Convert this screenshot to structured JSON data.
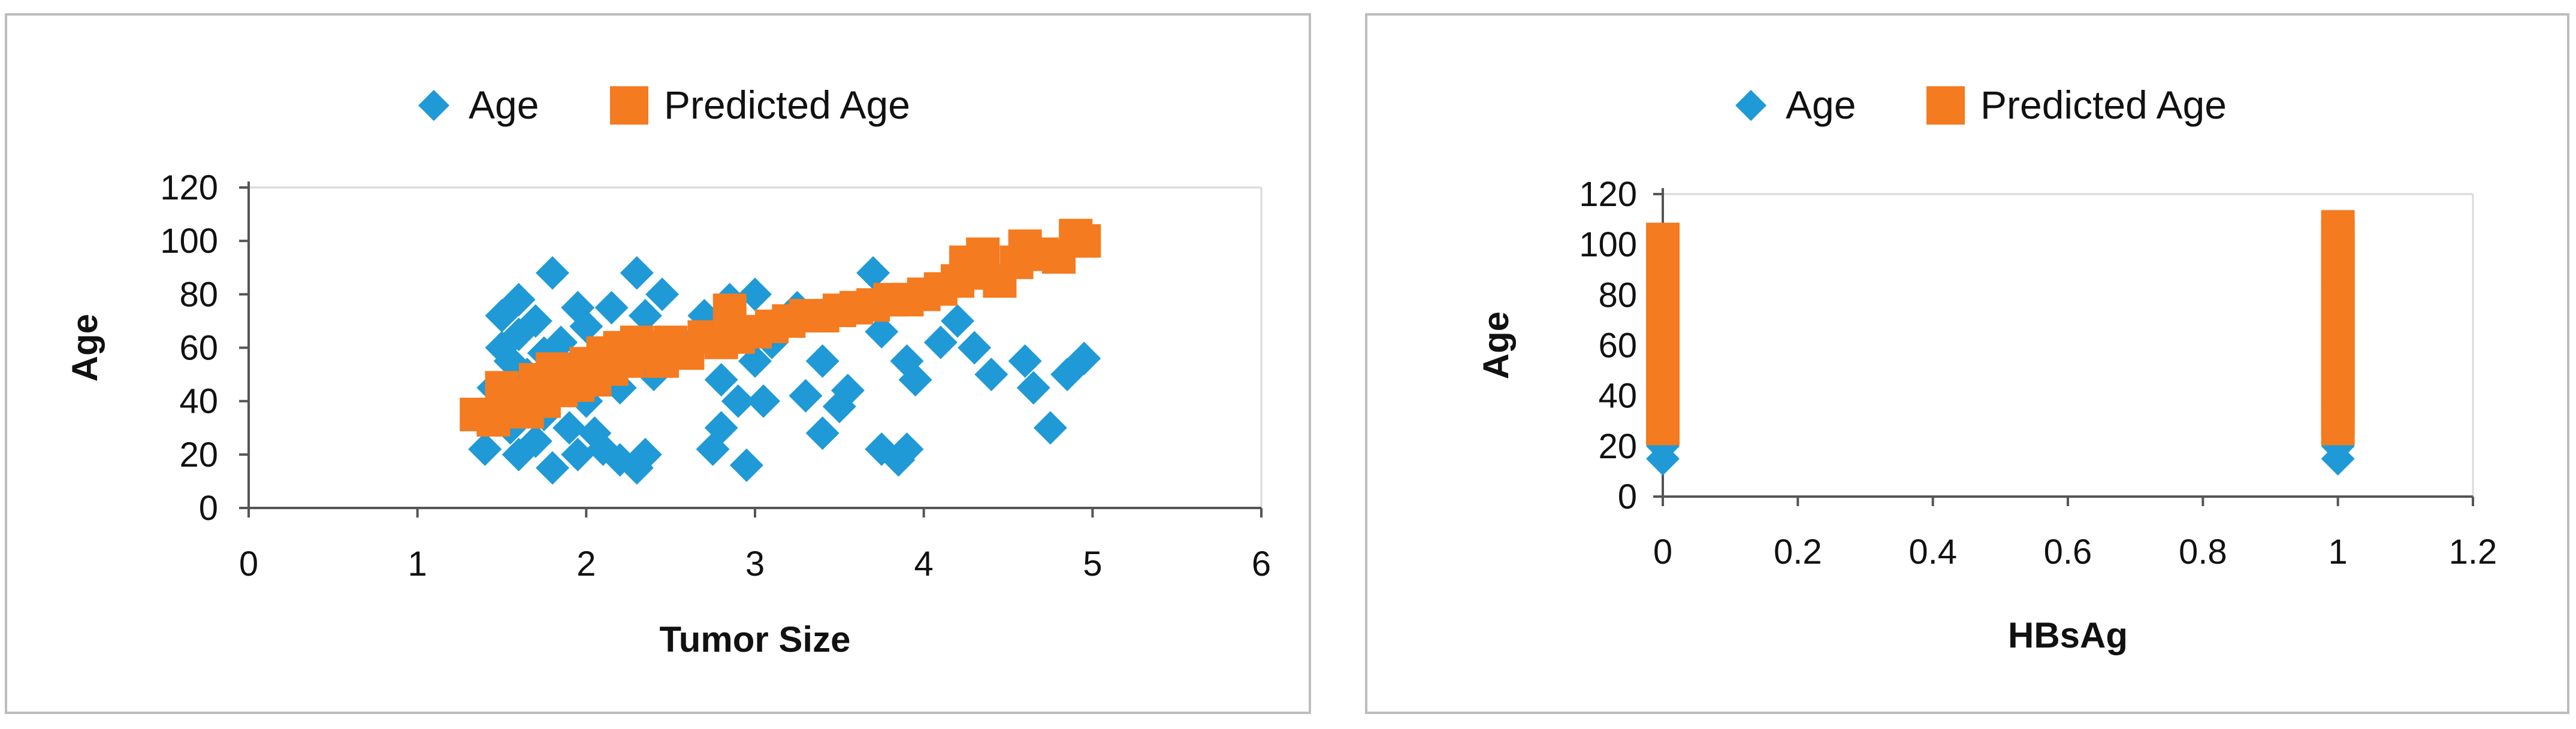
{
  "chart_data": [
    {
      "type": "scatter",
      "title": "",
      "xlabel": "Tumor Size",
      "ylabel": "Age",
      "xlim": [
        0,
        6
      ],
      "ylim": [
        0,
        120
      ],
      "xticks": [
        "0",
        "1",
        "2",
        "3",
        "4",
        "5",
        "6"
      ],
      "yticks": [
        "0",
        "20",
        "40",
        "60",
        "80",
        "100",
        "120"
      ],
      "grid": false,
      "legend_position": "top-center",
      "series": [
        {
          "name": "Age",
          "color": "#1f9ad6",
          "marker": "diamond",
          "points": [
            [
              1.4,
              22
            ],
            [
              1.45,
              45
            ],
            [
              1.5,
              60
            ],
            [
              1.5,
              72
            ],
            [
              1.55,
              30
            ],
            [
              1.55,
              55
            ],
            [
              1.6,
              20
            ],
            [
              1.6,
              40
            ],
            [
              1.6,
              65
            ],
            [
              1.6,
              78
            ],
            [
              1.65,
              50
            ],
            [
              1.7,
              25
            ],
            [
              1.7,
              70
            ],
            [
              1.75,
              35
            ],
            [
              1.75,
              58
            ],
            [
              1.8,
              15
            ],
            [
              1.8,
              45
            ],
            [
              1.8,
              88
            ],
            [
              1.85,
              62
            ],
            [
              1.9,
              30
            ],
            [
              1.9,
              52
            ],
            [
              1.95,
              20
            ],
            [
              1.95,
              75
            ],
            [
              2.0,
              40
            ],
            [
              2.0,
              68
            ],
            [
              2.05,
              28
            ],
            [
              2.1,
              22
            ],
            [
              2.1,
              55
            ],
            [
              2.15,
              75
            ],
            [
              2.2,
              18
            ],
            [
              2.2,
              45
            ],
            [
              2.25,
              60
            ],
            [
              2.3,
              15
            ],
            [
              2.3,
              88
            ],
            [
              2.35,
              20
            ],
            [
              2.35,
              72
            ],
            [
              2.4,
              50
            ],
            [
              2.45,
              80
            ],
            [
              2.6,
              60
            ],
            [
              2.7,
              72
            ],
            [
              2.75,
              22
            ],
            [
              2.8,
              30
            ],
            [
              2.8,
              48
            ],
            [
              2.85,
              78
            ],
            [
              2.9,
              40
            ],
            [
              2.95,
              16
            ],
            [
              3.0,
              55
            ],
            [
              3.0,
              80
            ],
            [
              3.05,
              40
            ],
            [
              3.1,
              62
            ],
            [
              3.25,
              75
            ],
            [
              3.3,
              42
            ],
            [
              3.4,
              28
            ],
            [
              3.4,
              55
            ],
            [
              3.5,
              38
            ],
            [
              3.55,
              44
            ],
            [
              3.6,
              75
            ],
            [
              3.7,
              88
            ],
            [
              3.75,
              22
            ],
            [
              3.75,
              66
            ],
            [
              3.85,
              18
            ],
            [
              3.9,
              22
            ],
            [
              3.9,
              55
            ],
            [
              3.95,
              48
            ],
            [
              4.1,
              62
            ],
            [
              4.2,
              70
            ],
            [
              4.3,
              60
            ],
            [
              4.4,
              50
            ],
            [
              4.6,
              55
            ],
            [
              4.65,
              45
            ],
            [
              4.75,
              30
            ],
            [
              4.85,
              50
            ],
            [
              4.95,
              56
            ]
          ]
        },
        {
          "name": "Predicted Age",
          "color": "#f47b20",
          "marker": "square",
          "points": [
            [
              1.35,
              35
            ],
            [
              1.45,
              33
            ],
            [
              1.5,
              45
            ],
            [
              1.55,
              38
            ],
            [
              1.6,
              42
            ],
            [
              1.65,
              36
            ],
            [
              1.7,
              48
            ],
            [
              1.75,
              40
            ],
            [
              1.8,
              52
            ],
            [
              1.85,
              44
            ],
            [
              1.9,
              50
            ],
            [
              1.95,
              46
            ],
            [
              2.0,
              54
            ],
            [
              2.05,
              48
            ],
            [
              2.1,
              58
            ],
            [
              2.15,
              52
            ],
            [
              2.2,
              60
            ],
            [
              2.25,
              55
            ],
            [
              2.3,
              62
            ],
            [
              2.35,
              58
            ],
            [
              2.4,
              60
            ],
            [
              2.45,
              55
            ],
            [
              2.5,
              62
            ],
            [
              2.6,
              58
            ],
            [
              2.7,
              64
            ],
            [
              2.8,
              62
            ],
            [
              2.85,
              74
            ],
            [
              2.9,
              64
            ],
            [
              3.0,
              66
            ],
            [
              3.1,
              68
            ],
            [
              3.2,
              70
            ],
            [
              3.3,
              72
            ],
            [
              3.4,
              72
            ],
            [
              3.5,
              74
            ],
            [
              3.6,
              75
            ],
            [
              3.7,
              76
            ],
            [
              3.8,
              78
            ],
            [
              3.9,
              78
            ],
            [
              4.0,
              80
            ],
            [
              4.1,
              82
            ],
            [
              4.2,
              85
            ],
            [
              4.25,
              92
            ],
            [
              4.3,
              88
            ],
            [
              4.35,
              95
            ],
            [
              4.45,
              85
            ],
            [
              4.55,
              92
            ],
            [
              4.6,
              98
            ],
            [
              4.7,
              95
            ],
            [
              4.8,
              94
            ],
            [
              4.9,
              102
            ],
            [
              4.95,
              100
            ]
          ]
        }
      ]
    },
    {
      "type": "scatter",
      "title": "",
      "xlabel": "HBsAg",
      "ylabel": "Age",
      "xlim": [
        0,
        1.2
      ],
      "ylim": [
        0,
        120
      ],
      "xticks": [
        "0",
        "0.2",
        "0.4",
        "0.6",
        "0.8",
        "1",
        "1.2"
      ],
      "yticks": [
        "0",
        "20",
        "40",
        "60",
        "80",
        "100",
        "120"
      ],
      "grid": false,
      "legend_position": "top-center",
      "series": [
        {
          "name": "Age",
          "color": "#1f9ad6",
          "marker": "diamond",
          "points": [
            [
              0,
              15
            ],
            [
              0,
              20
            ],
            [
              0,
              25
            ],
            [
              0,
              30
            ],
            [
              0,
              35
            ],
            [
              0,
              40
            ],
            [
              0,
              45
            ],
            [
              0,
              50
            ],
            [
              0,
              55
            ],
            [
              0,
              60
            ],
            [
              0,
              65
            ],
            [
              0,
              70
            ],
            [
              0,
              75
            ],
            [
              0,
              80
            ],
            [
              0,
              85
            ],
            [
              0,
              90
            ],
            [
              1,
              15
            ],
            [
              1,
              20
            ],
            [
              1,
              25
            ],
            [
              1,
              30
            ],
            [
              1,
              35
            ],
            [
              1,
              40
            ],
            [
              1,
              45
            ],
            [
              1,
              50
            ],
            [
              1,
              55
            ],
            [
              1,
              60
            ],
            [
              1,
              65
            ],
            [
              1,
              70
            ],
            [
              1,
              75
            ],
            [
              1,
              80
            ],
            [
              1,
              85
            ],
            [
              1,
              90
            ]
          ]
        },
        {
          "name": "Predicted Age",
          "color": "#f47b20",
          "marker": "square",
          "points": [
            [
              0,
              27
            ],
            [
              0,
              31
            ],
            [
              0,
              35
            ],
            [
              0,
              39
            ],
            [
              0,
              43
            ],
            [
              0,
              47
            ],
            [
              0,
              51
            ],
            [
              0,
              55
            ],
            [
              0,
              59
            ],
            [
              0,
              63
            ],
            [
              0,
              67
            ],
            [
              0,
              71
            ],
            [
              0,
              75
            ],
            [
              0,
              79
            ],
            [
              0,
              83
            ],
            [
              0,
              87
            ],
            [
              0,
              91
            ],
            [
              0,
              95
            ],
            [
              0,
              99
            ],
            [
              0,
              102
            ],
            [
              1,
              27
            ],
            [
              1,
              31
            ],
            [
              1,
              35
            ],
            [
              1,
              39
            ],
            [
              1,
              43
            ],
            [
              1,
              47
            ],
            [
              1,
              51
            ],
            [
              1,
              55
            ],
            [
              1,
              59
            ],
            [
              1,
              63
            ],
            [
              1,
              67
            ],
            [
              1,
              71
            ],
            [
              1,
              75
            ],
            [
              1,
              79
            ],
            [
              1,
              83
            ],
            [
              1,
              87
            ],
            [
              1,
              91
            ],
            [
              1,
              95
            ],
            [
              1,
              99
            ],
            [
              1,
              103
            ],
            [
              1,
              107
            ]
          ]
        }
      ]
    }
  ]
}
